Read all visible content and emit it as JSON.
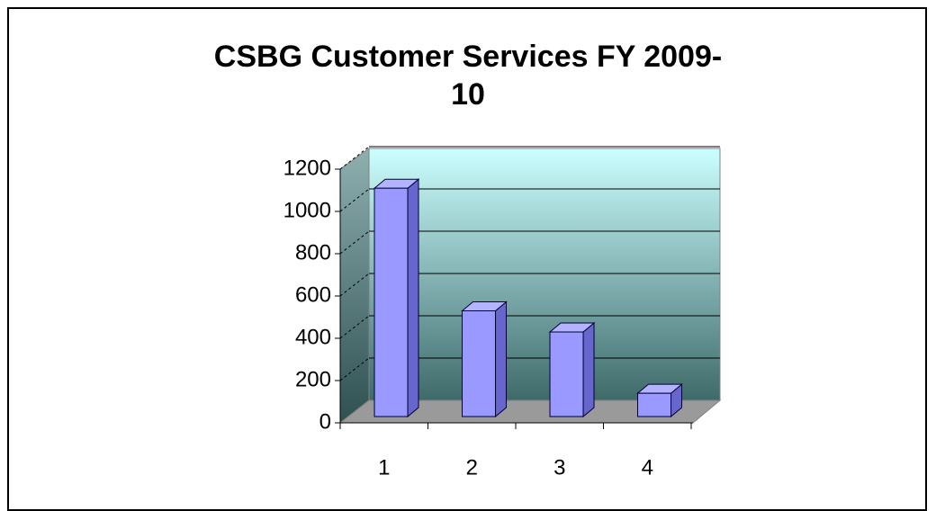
{
  "chart_data": {
    "type": "bar",
    "title": "CSBG Customer Services FY 2009-10",
    "categories": [
      "1",
      "2",
      "3",
      "4"
    ],
    "values": [
      1080,
      500,
      400,
      110
    ],
    "color": "#9999ff",
    "ylim": [
      0,
      1200
    ],
    "yticks": [
      0,
      200,
      400,
      600,
      800,
      1000,
      1200
    ],
    "grid": true
  }
}
